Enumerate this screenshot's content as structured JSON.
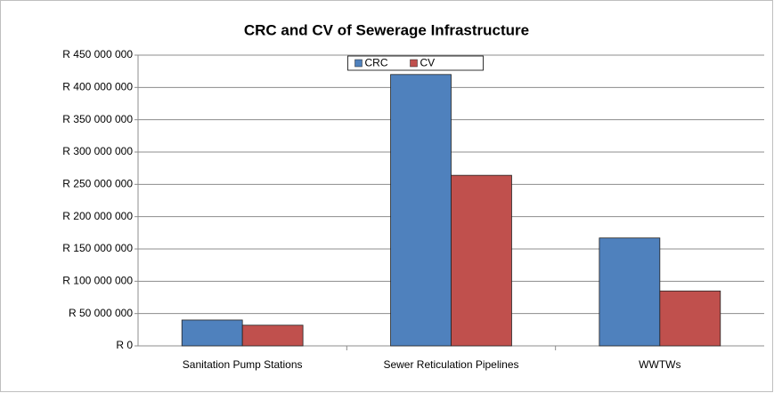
{
  "chart_data": {
    "type": "bar",
    "title": "CRC and CV of Sewerage Infrastructure",
    "categories": [
      "Sanitation Pump Stations",
      "Sewer Reticulation Pipelines",
      "WWTWs"
    ],
    "series": [
      {
        "name": "CRC",
        "color": "#4f81bd",
        "values": [
          40000000,
          420000000,
          167000000
        ]
      },
      {
        "name": "CV",
        "color": "#c0504d",
        "values": [
          32000000,
          264000000,
          85000000
        ]
      }
    ],
    "ylim": [
      0,
      450000000
    ],
    "yticks": [
      {
        "value": 0,
        "label": "R 0"
      },
      {
        "value": 50000000,
        "label": "R 50 000 000"
      },
      {
        "value": 100000000,
        "label": "R 100 000 000"
      },
      {
        "value": 150000000,
        "label": "R 150 000 000"
      },
      {
        "value": 200000000,
        "label": "R 200 000 000"
      },
      {
        "value": 250000000,
        "label": "R 250 000 000"
      },
      {
        "value": 300000000,
        "label": "R 300 000 000"
      },
      {
        "value": 350000000,
        "label": "R 350 000 000"
      },
      {
        "value": 400000000,
        "label": "R 400 000 000"
      },
      {
        "value": 450000000,
        "label": "R 450 000 000"
      }
    ],
    "grid": true,
    "legend": "top"
  }
}
